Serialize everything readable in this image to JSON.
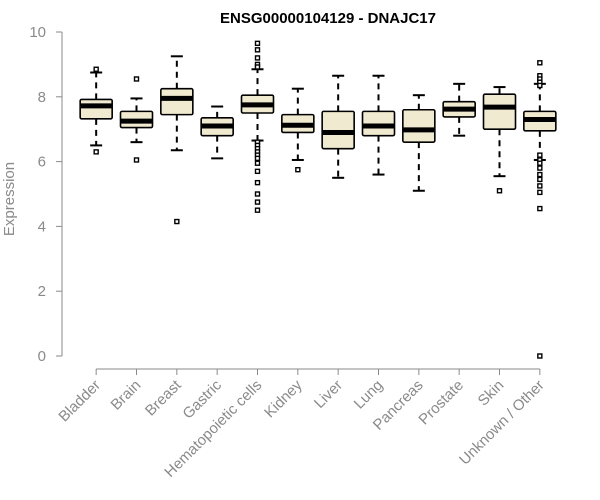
{
  "chart_data": {
    "type": "boxplot",
    "title": "ENSG00000104129 - DNAJC17",
    "xlabel": "",
    "ylabel": "Expression",
    "ylim": [
      0,
      10
    ],
    "yticks": [
      0,
      2,
      4,
      6,
      8,
      10
    ],
    "grid": false,
    "box_fill": "#f0ead0",
    "box_stroke": "#000000",
    "axis_color": "#8a8a8a",
    "categories": [
      "Bladder",
      "Brain",
      "Breast",
      "Gastric",
      "Hematopoietic cells",
      "Kidney",
      "Liver",
      "Lung",
      "Pancreas",
      "Prostate",
      "Skin",
      "Unknown / Other"
    ],
    "boxes": [
      {
        "category": "Bladder",
        "whisker_low": 6.5,
        "q1": 7.32,
        "median": 7.72,
        "q3": 7.92,
        "whisker_high": 8.75,
        "outliers": [
          8.85,
          6.3
        ]
      },
      {
        "category": "Brain",
        "whisker_low": 6.6,
        "q1": 7.05,
        "median": 7.25,
        "q3": 7.55,
        "whisker_high": 7.95,
        "outliers": [
          8.55,
          6.05
        ]
      },
      {
        "category": "Breast",
        "whisker_low": 6.35,
        "q1": 7.45,
        "median": 7.95,
        "q3": 8.25,
        "whisker_high": 9.25,
        "outliers": [
          4.15
        ]
      },
      {
        "category": "Gastric",
        "whisker_low": 6.1,
        "q1": 6.8,
        "median": 7.1,
        "q3": 7.35,
        "whisker_high": 7.7,
        "outliers": []
      },
      {
        "category": "Hematopoietic cells",
        "whisker_low": 6.65,
        "q1": 7.5,
        "median": 7.75,
        "q3": 8.05,
        "whisker_high": 8.85,
        "outliers": [
          9.65,
          9.45,
          9.2,
          9.0,
          8.92,
          6.6,
          6.5,
          6.4,
          6.3,
          6.2,
          6.1,
          5.95,
          5.7,
          5.35,
          5.0,
          4.75,
          4.5
        ]
      },
      {
        "category": "Kidney",
        "whisker_low": 6.05,
        "q1": 6.9,
        "median": 7.12,
        "q3": 7.45,
        "whisker_high": 8.25,
        "outliers": [
          5.75
        ]
      },
      {
        "category": "Liver",
        "whisker_low": 5.5,
        "q1": 6.4,
        "median": 6.9,
        "q3": 7.55,
        "whisker_high": 8.65,
        "outliers": []
      },
      {
        "category": "Lung",
        "whisker_low": 5.6,
        "q1": 6.8,
        "median": 7.1,
        "q3": 7.55,
        "whisker_high": 8.65,
        "outliers": []
      },
      {
        "category": "Pancreas",
        "whisker_low": 5.1,
        "q1": 6.6,
        "median": 6.98,
        "q3": 7.6,
        "whisker_high": 8.05,
        "outliers": []
      },
      {
        "category": "Prostate",
        "whisker_low": 6.8,
        "q1": 7.38,
        "median": 7.62,
        "q3": 7.85,
        "whisker_high": 8.4,
        "outliers": []
      },
      {
        "category": "Skin",
        "whisker_low": 5.55,
        "q1": 7.0,
        "median": 7.68,
        "q3": 8.08,
        "whisker_high": 8.3,
        "outliers": [
          5.1
        ]
      },
      {
        "category": "Unknown / Other",
        "whisker_low": 6.05,
        "q1": 6.95,
        "median": 7.3,
        "q3": 7.55,
        "whisker_high": 8.4,
        "outliers": [
          9.05,
          8.65,
          8.55,
          8.45,
          8.35,
          6.2,
          6.05,
          5.95,
          5.8,
          5.6,
          5.45,
          5.25,
          5.05,
          4.55,
          0.0
        ]
      }
    ]
  }
}
